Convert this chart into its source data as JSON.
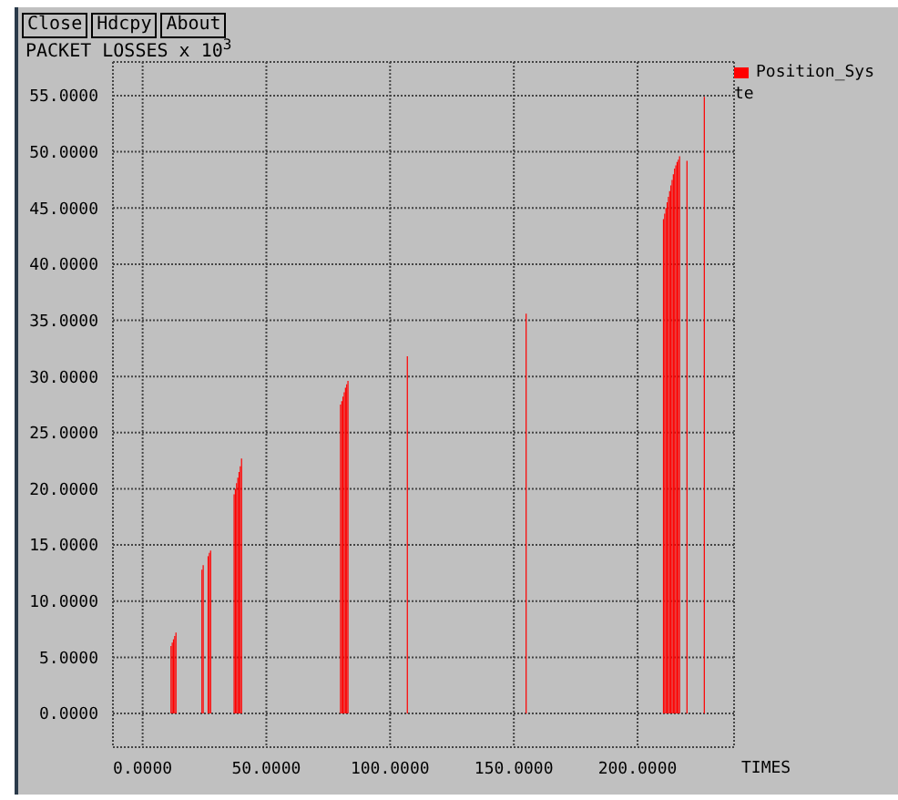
{
  "chart_data": {
    "type": "bar",
    "title": "PACKET LOSSES x 10$^{3}$",
    "xlabel": "TIMES",
    "annotations": [
      "Close",
      "Hdcpy",
      "About"
    ],
    "x": [
      11.5,
      12,
      12.5,
      13,
      13.5,
      24,
      24.5,
      26.5,
      27,
      27.5,
      37,
      37.5,
      38,
      38.5,
      39,
      39.5,
      40,
      80,
      80.5,
      81,
      81.5,
      82,
      82.5,
      83,
      107,
      155,
      210.5,
      211,
      211.5,
      212,
      212.5,
      213,
      213.5,
      214,
      214.5,
      215,
      215.5,
      216,
      216.5,
      217,
      220,
      227
    ],
    "series": [
      {
        "name": "Position_Syste",
        "color": "#ff0000",
        "values": [
          6.0,
          6.3,
          6.6,
          6.9,
          7.2,
          12.8,
          13.2,
          14.0,
          14.3,
          14.5,
          19.5,
          20,
          20.5,
          21,
          21.5,
          22,
          22.7,
          27.5,
          27.8,
          28.2,
          28.6,
          29,
          29.3,
          29.6,
          31.8,
          35.6,
          44,
          44.5,
          45,
          45.5,
          46,
          46.5,
          47,
          47.5,
          48,
          48.5,
          48.8,
          49.1,
          49.3,
          49.6,
          49.2,
          54.9
        ]
      }
    ],
    "xlim": [
      -12,
      239
    ],
    "ylim": [
      -3,
      58
    ],
    "xticks": [
      {
        "value": 0,
        "label": "0.0000"
      },
      {
        "value": 50,
        "label": "50.0000"
      },
      {
        "value": 100,
        "label": "100.0000"
      },
      {
        "value": 150,
        "label": "150.0000"
      },
      {
        "value": 200,
        "label": "200.0000"
      }
    ],
    "yticks": [
      {
        "value": 0,
        "label": "0.0000"
      },
      {
        "value": 5,
        "label": "5.0000"
      },
      {
        "value": 10,
        "label": "10.0000"
      },
      {
        "value": 15,
        "label": "15.0000"
      },
      {
        "value": 20,
        "label": "20.0000"
      },
      {
        "value": 25,
        "label": "25.0000"
      },
      {
        "value": 30,
        "label": "30.0000"
      },
      {
        "value": 35,
        "label": "35.0000"
      },
      {
        "value": 40,
        "label": "40.0000"
      },
      {
        "value": 45,
        "label": "45.0000"
      },
      {
        "value": 50,
        "label": "50.0000"
      },
      {
        "value": 55,
        "label": "55.0000"
      }
    ],
    "grid": true,
    "legend": "top right"
  }
}
